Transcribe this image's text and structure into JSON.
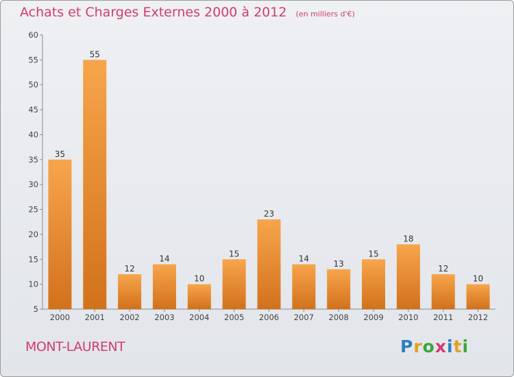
{
  "header": {
    "title": "Achats et Charges Externes 2000 à 2012",
    "subtitle": "(en milliers d'€)"
  },
  "footer": {
    "commune": "MONT-LAURENT",
    "logo": "Proxiti"
  },
  "colors": {
    "title": "#d23c6e",
    "bar_light": "#f7a54c",
    "bar_dark": "#d2711b",
    "logo_letters": [
      "#2f7fc1",
      "#e0a020",
      "#3aa63a",
      "#d23c6e",
      "#2f7fc1",
      "#e0a020",
      "#3aa63a"
    ]
  },
  "chart_data": {
    "type": "bar",
    "categories": [
      "2000",
      "2001",
      "2002",
      "2003",
      "2004",
      "2005",
      "2006",
      "2007",
      "2008",
      "2009",
      "2010",
      "2011",
      "2012"
    ],
    "values": [
      35,
      55,
      12,
      14,
      10,
      15,
      23,
      14,
      13,
      15,
      18,
      12,
      10
    ],
    "ylim": [
      5,
      60
    ],
    "yticks": [
      5,
      10,
      15,
      20,
      25,
      30,
      35,
      40,
      45,
      50,
      55,
      60
    ],
    "grid": false,
    "data_labels": true
  }
}
